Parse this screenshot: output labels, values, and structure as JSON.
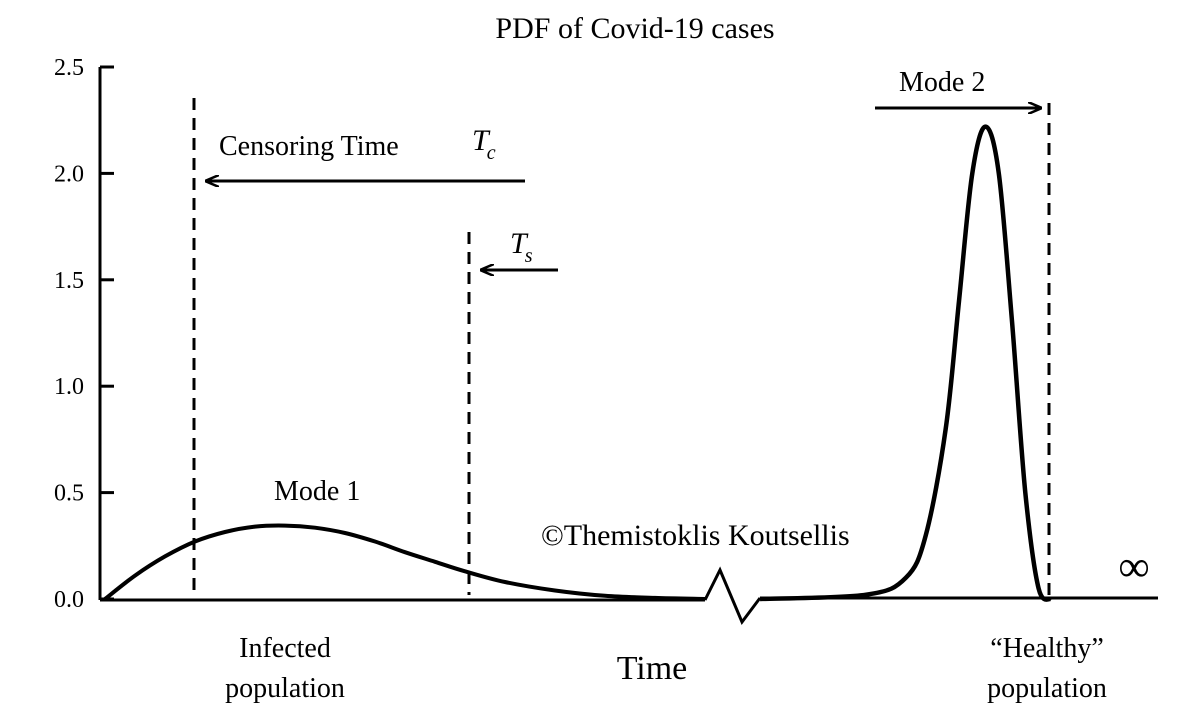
{
  "chart_data": {
    "type": "line",
    "title": "PDF of Covid-19 cases",
    "xlabel": "Time",
    "ylabel": "",
    "ylim": [
      0,
      2.5
    ],
    "yticks": [
      "0.0",
      "0.5",
      "1.0",
      "1.5",
      "2.0",
      "2.5"
    ],
    "xlim": [
      0,
      100
    ],
    "series": [
      {
        "name": "Mode 1",
        "x": [
          0,
          3,
          6,
          9,
          12,
          15,
          18,
          21,
          24,
          27,
          30,
          33,
          36,
          40,
          45,
          50,
          55,
          60
        ],
        "y": [
          0,
          0.11,
          0.2,
          0.27,
          0.315,
          0.34,
          0.345,
          0.335,
          0.31,
          0.27,
          0.22,
          0.175,
          0.13,
          0.08,
          0.04,
          0.015,
          0.005,
          0
        ]
      },
      {
        "name": "Mode 2",
        "x": [
          70,
          78,
          81,
          82.5,
          84,
          85,
          86,
          87,
          88,
          89,
          90,
          91,
          92
        ],
        "y": [
          0,
          0.02,
          0.1,
          0.3,
          0.8,
          1.4,
          2.0,
          2.22,
          2.0,
          1.3,
          0.5,
          0.05,
          0
        ]
      }
    ],
    "annotations": {
      "censoring_label": "Censoring Time",
      "tc_symbol": "T",
      "tc_sub": "c",
      "ts_symbol": "T",
      "ts_sub": "s",
      "mode1": "Mode 1",
      "mode2": "Mode 2",
      "infected_line1": "Infected",
      "infected_line2": "population",
      "healthy_line1": "“Healthy”",
      "healthy_line2": "population",
      "infinity": "∞",
      "watermark": "©Themistoklis Koutsellis"
    }
  }
}
